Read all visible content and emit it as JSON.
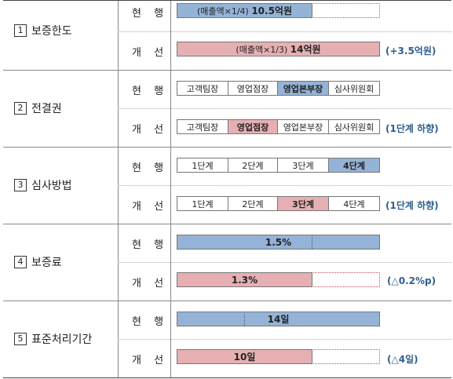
{
  "row_labels": {
    "current": "현 행",
    "improved": "개 선"
  },
  "sections": [
    {
      "num": "1",
      "title": "보증한도",
      "current": {
        "prefix": "(매출액×1/4)",
        "value": "10.5억원"
      },
      "improved": {
        "prefix": "(매출액×1/3)",
        "value": "14억원"
      },
      "note": "(+3.5억원)"
    },
    {
      "num": "2",
      "title": "전결권",
      "current_segments": [
        "고객팀장",
        "영업점장",
        "영업본부장",
        "심사위원회"
      ],
      "improved_segments": [
        "고객팀장",
        "영업점장",
        "영업본부장",
        "심사위원회"
      ],
      "note": "(1단계  하향)"
    },
    {
      "num": "3",
      "title": "심사방법",
      "current_segments": [
        "1단계",
        "2단계",
        "3단계",
        "4단계"
      ],
      "improved_segments": [
        "1단계",
        "2단계",
        "3단계",
        "4단계"
      ],
      "note": "(1단계  하향)"
    },
    {
      "num": "4",
      "title": "보증료",
      "current": {
        "value": "1.5%"
      },
      "improved": {
        "value": "1.3%"
      },
      "note": "(△0.2%p)"
    },
    {
      "num": "5",
      "title": "표준처리기간",
      "current": {
        "value": "14일"
      },
      "improved": {
        "value": "10일"
      },
      "note": "(△4일)"
    }
  ],
  "highlights": {
    "current_fill": "#95b3d7",
    "improved_fill": "#e6b0b3",
    "note_color": "#2e5f8f"
  }
}
